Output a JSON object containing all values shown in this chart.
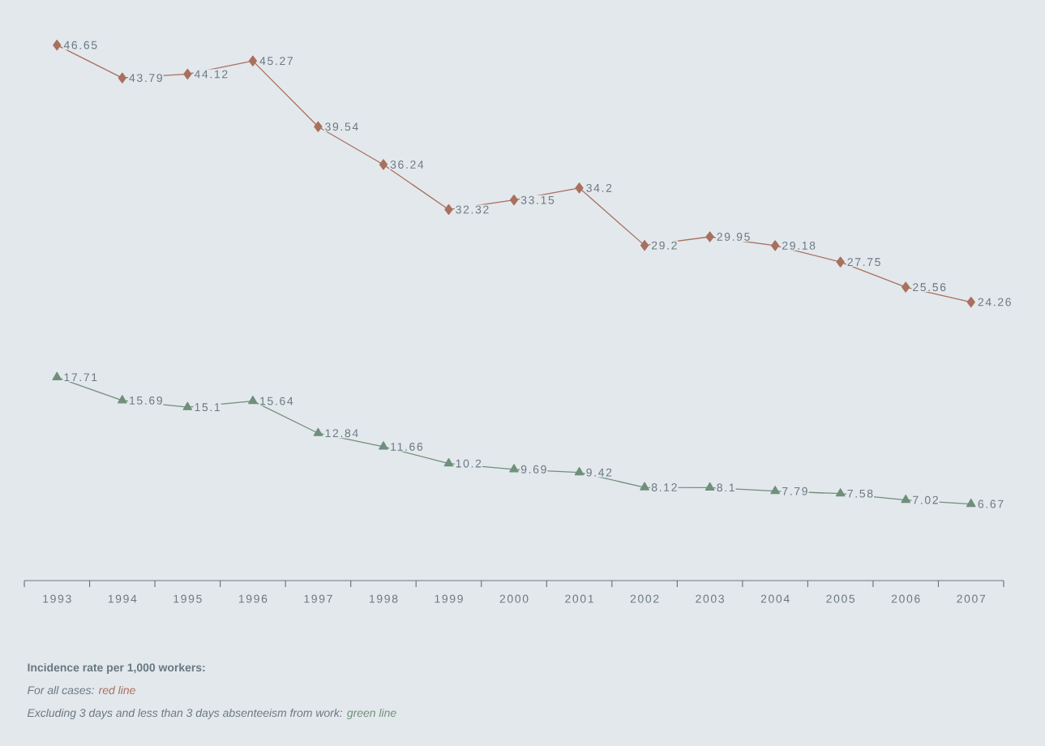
{
  "chart_data": {
    "type": "line",
    "title": "Incidence rate per 1,000 workers:",
    "categories": [
      "1993",
      "1994",
      "1995",
      "1996",
      "1997",
      "1998",
      "1999",
      "2000",
      "2001",
      "2002",
      "2003",
      "2004",
      "2005",
      "2006",
      "2007"
    ],
    "series": [
      {
        "color": "#a8705f",
        "marker": "diamond",
        "values": [
          46.65,
          43.79,
          44.12,
          45.27,
          39.54,
          36.24,
          32.32,
          33.15,
          34.2,
          29.2,
          29.95,
          29.18,
          27.75,
          25.56,
          24.26
        ]
      },
      {
        "color": "#6f907b",
        "marker": "triangle",
        "values": [
          17.71,
          15.69,
          15.1,
          15.64,
          12.84,
          11.66,
          10.2,
          9.69,
          9.42,
          8.12,
          8.1,
          7.79,
          7.58,
          7.02,
          6.67
        ]
      }
    ],
    "data_labels": true,
    "grid": false,
    "annotations": [
      "For all cases:",
      "red line",
      "Excluding 3 days and less than 3 days absenteeism from work:",
      "green line"
    ]
  }
}
